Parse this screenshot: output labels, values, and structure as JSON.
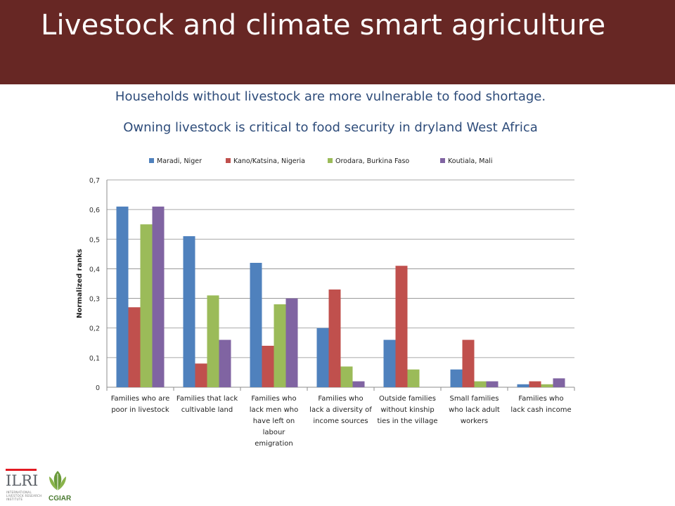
{
  "header": {
    "title": "Livestock and climate smart agriculture",
    "background_color": "#672724"
  },
  "subtitles": [
    "Households without livestock are more vulnerable to food shortage.",
    "Owning livestock is critical to food security in dryland  West Africa"
  ],
  "logos": {
    "ilri": "ILRI",
    "ilri_small_lines": [
      "INTERNATIONAL",
      "LIVESTOCK RESEARCH",
      "INSTITUTE"
    ],
    "cgiar": "CGIAR"
  },
  "chart_data": {
    "type": "bar",
    "ylabel": "Normalized ranks",
    "xlabel": "",
    "ylim": [
      0,
      0.7
    ],
    "yticks": [
      "0",
      "0,1",
      "0,2",
      "0,3",
      "0,4",
      "0,5",
      "0,6",
      "0,7"
    ],
    "grid": true,
    "legend_position": "top",
    "categories": [
      [
        "Families who are",
        "poor in livestock"
      ],
      [
        "Families that lack",
        "cultivable land"
      ],
      [
        "Families who",
        "lack men who",
        "have left on",
        "labour",
        "emigration"
      ],
      [
        "Families who",
        "lack a diversity of",
        "income sources"
      ],
      [
        "Outside families",
        "without kinship",
        "ties in the village"
      ],
      [
        "Small families",
        "who lack adult",
        "workers"
      ],
      [
        "Families who",
        "lack cash income"
      ]
    ],
    "series": [
      {
        "name": "Maradi, Niger",
        "color": "#4f81bd",
        "values": [
          0.61,
          0.51,
          0.42,
          0.2,
          0.16,
          0.06,
          0.01
        ]
      },
      {
        "name": "Kano/Katsina, Nigeria",
        "color": "#c0504d",
        "values": [
          0.27,
          0.08,
          0.14,
          0.33,
          0.41,
          0.16,
          0.02
        ]
      },
      {
        "name": "Orodara, Burkina Faso",
        "color": "#9bbb59",
        "values": [
          0.55,
          0.31,
          0.28,
          0.07,
          0.06,
          0.02,
          0.01
        ]
      },
      {
        "name": "Koutiala, Mali",
        "color": "#8064a2",
        "values": [
          0.61,
          0.16,
          0.3,
          0.02,
          0.0,
          0.02,
          0.03
        ]
      }
    ]
  }
}
